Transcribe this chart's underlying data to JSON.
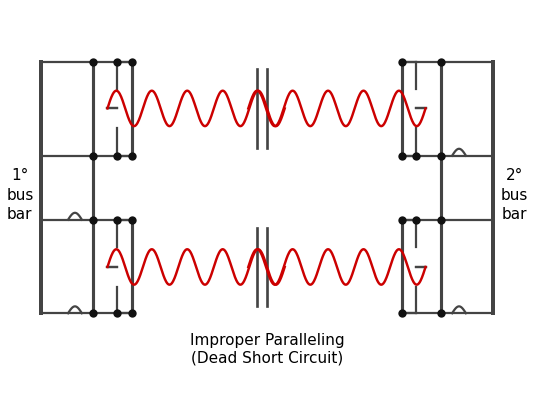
{
  "bg_color": "#ffffff",
  "line_color": "#444444",
  "coil_color": "#cc0000",
  "core_color": "#444444",
  "dot_color": "#111111",
  "title_line1": "Improper Paralleling",
  "title_line2": "(Dead Short Circuit)",
  "label_left": "1°\nbus\nbar",
  "label_right": "2°\nbus\nbar",
  "title_fontsize": 11,
  "label_fontsize": 11,
  "lw": 1.6,
  "dot_size": 6
}
